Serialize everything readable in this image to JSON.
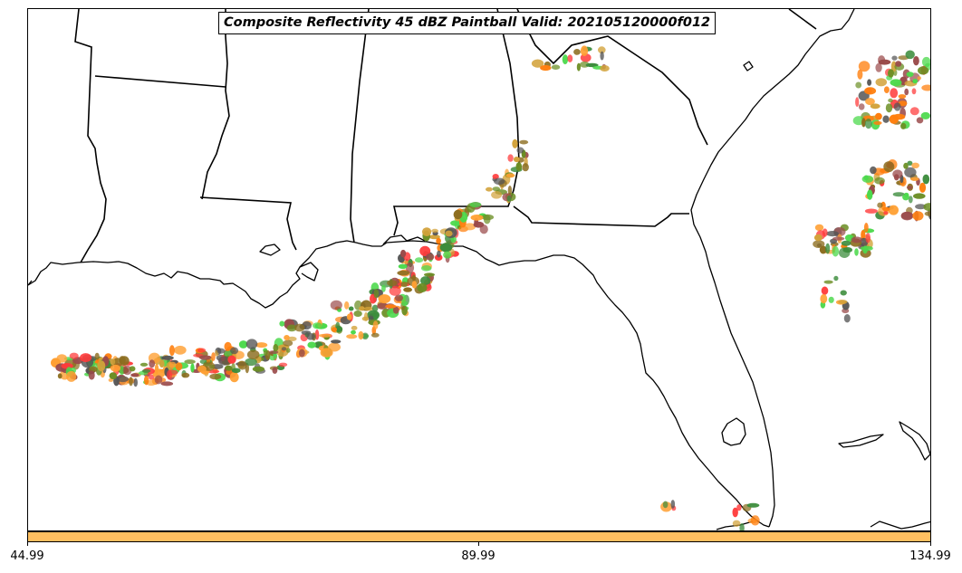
{
  "title": "Composite Reflectivity 45 dBZ Paintball Valid: 202105120000f012",
  "colorbar": {
    "color": "#ffbf60",
    "ticks": [
      "44.99",
      "89.99",
      "134.99"
    ]
  },
  "map": {
    "background": "#ffffff",
    "coastline_color": "#000000",
    "paintball_colors": [
      "#ff3b3b",
      "#ff7f0e",
      "#4cd94c",
      "#3c8c3c",
      "#8c6d1f",
      "#9a4a4a",
      "#555555",
      "#ffa033",
      "#d2a23a",
      "#6b8e23"
    ]
  }
}
